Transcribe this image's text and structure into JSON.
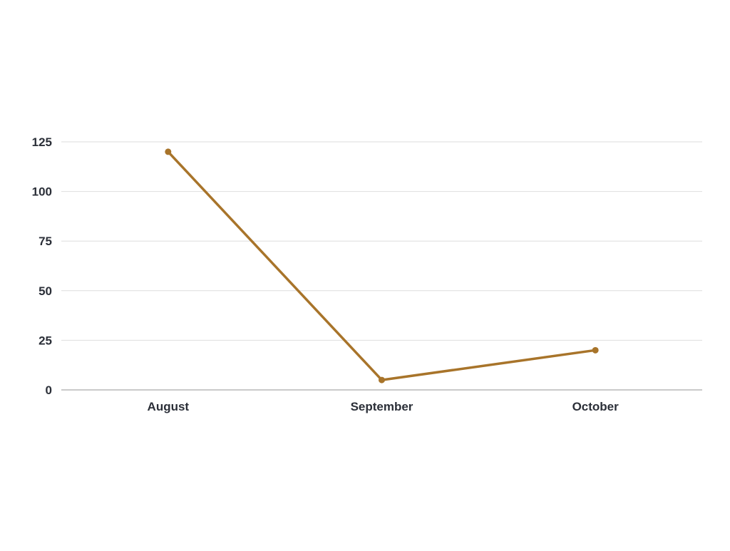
{
  "chart_data": {
    "type": "line",
    "title": "",
    "xlabel": "",
    "ylabel": "",
    "categories": [
      "August",
      "September",
      "October"
    ],
    "yticks": [
      "0",
      "25",
      "50",
      "75",
      "100",
      "125"
    ],
    "ylim": [
      0,
      125
    ],
    "grid": true,
    "legend": "none",
    "series": [
      {
        "values": [
          120,
          5,
          20
        ],
        "color": "#a8742a"
      }
    ]
  }
}
